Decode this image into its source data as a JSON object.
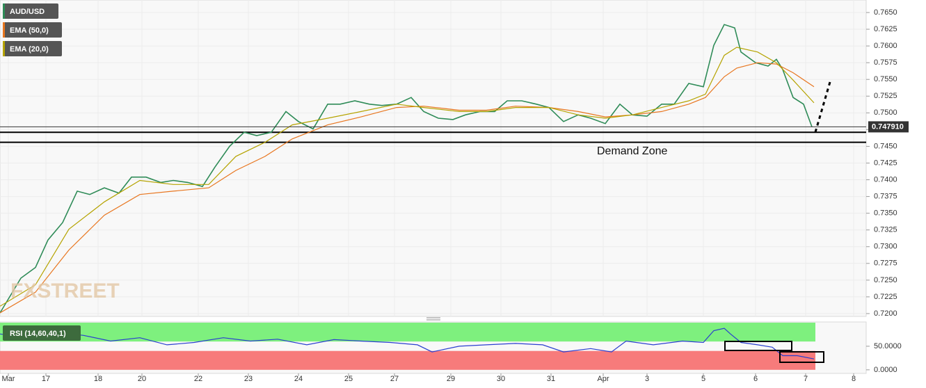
{
  "chart_data": [
    {
      "type": "line",
      "legend": [
        "AUD/USD",
        "EMA (50,0)",
        "EMA (20,0)"
      ],
      "watermark": "FXSTREET",
      "annotation": "Demand Zone",
      "last_price": {
        "value": 0.74791,
        "label": "0.747910"
      },
      "levels": [
        0.7471,
        0.7456
      ],
      "xlim": [
        0,
        415
      ],
      "xticks": [
        {
          "value": 4,
          "label": "Mar"
        },
        {
          "value": 22,
          "label": "17"
        },
        {
          "value": 47,
          "label": "18"
        },
        {
          "value": 68,
          "label": "20"
        },
        {
          "value": 95,
          "label": "22"
        },
        {
          "value": 119,
          "label": "23"
        },
        {
          "value": 143,
          "label": "24"
        },
        {
          "value": 167,
          "label": "25"
        },
        {
          "value": 189,
          "label": "27"
        },
        {
          "value": 216,
          "label": "29"
        },
        {
          "value": 240,
          "label": "30"
        },
        {
          "value": 264,
          "label": "31"
        },
        {
          "value": 289,
          "label": "Apr"
        },
        {
          "value": 310,
          "label": "3"
        },
        {
          "value": 337,
          "label": "5"
        },
        {
          "value": 362,
          "label": "6"
        },
        {
          "value": 386,
          "label": "7"
        },
        {
          "value": 409,
          "label": "8"
        }
      ],
      "ylim": [
        0.71958,
        0.76687
      ],
      "yticks": [
        {
          "value": 0.72,
          "label": "0.7200"
        },
        {
          "value": 0.7225,
          "label": "0.7225"
        },
        {
          "value": 0.725,
          "label": "0.7250"
        },
        {
          "value": 0.7275,
          "label": "0.7275"
        },
        {
          "value": 0.73,
          "label": "0.7300"
        },
        {
          "value": 0.7325,
          "label": "0.7325"
        },
        {
          "value": 0.735,
          "label": "0.7350"
        },
        {
          "value": 0.7375,
          "label": "0.7375"
        },
        {
          "value": 0.74,
          "label": "0.7400"
        },
        {
          "value": 0.7425,
          "label": "0.7425"
        },
        {
          "value": 0.745,
          "label": "0.7450"
        },
        {
          "value": 0.7475,
          "label": "0.7475"
        },
        {
          "value": 0.75,
          "label": "0.7500"
        },
        {
          "value": 0.7525,
          "label": "0.7525"
        },
        {
          "value": 0.755,
          "label": "0.7550"
        },
        {
          "value": 0.7575,
          "label": "0.7575"
        },
        {
          "value": 0.76,
          "label": "0.7600"
        },
        {
          "value": 0.7625,
          "label": "0.7625"
        },
        {
          "value": 0.765,
          "label": "0.7650"
        }
      ],
      "grid": true,
      "series": [
        {
          "name": "AUD/USD",
          "color": "#2e8b57",
          "x": [
            0,
            10,
            17,
            23,
            30,
            37,
            43,
            50,
            57,
            63,
            70,
            77,
            83,
            90,
            97,
            103,
            110,
            117,
            123,
            130,
            137,
            143,
            150,
            157,
            163,
            170,
            177,
            183,
            190,
            197,
            203,
            210,
            217,
            223,
            230,
            237,
            243,
            250,
            257,
            263,
            270,
            277,
            283,
            290,
            297,
            303,
            310,
            317,
            323,
            330,
            337,
            342,
            347,
            352,
            355,
            362,
            368,
            372,
            375,
            380,
            385,
            389
          ],
          "values": [
            0.7201,
            0.7253,
            0.7269,
            0.731,
            0.7336,
            0.7383,
            0.7378,
            0.7388,
            0.738,
            0.7404,
            0.7404,
            0.7396,
            0.7399,
            0.7396,
            0.739,
            0.7419,
            0.745,
            0.7471,
            0.7466,
            0.7471,
            0.7502,
            0.7487,
            0.7476,
            0.7513,
            0.7513,
            0.7518,
            0.7513,
            0.7511,
            0.7513,
            0.7523,
            0.7502,
            0.7492,
            0.749,
            0.7497,
            0.7502,
            0.7502,
            0.7518,
            0.7518,
            0.7513,
            0.7508,
            0.7487,
            0.7497,
            0.7492,
            0.7484,
            0.7513,
            0.7497,
            0.7495,
            0.7513,
            0.7513,
            0.7544,
            0.7539,
            0.7601,
            0.7632,
            0.7627,
            0.7591,
            0.7575,
            0.757,
            0.758,
            0.7565,
            0.7523,
            0.7513,
            0.74791
          ]
        },
        {
          "name": "EMA (50,0)",
          "color": "#e8761f",
          "x": [
            0,
            17,
            33,
            50,
            67,
            83,
            100,
            113,
            127,
            140,
            157,
            173,
            190,
            203,
            220,
            233,
            247,
            263,
            277,
            290,
            303,
            317,
            330,
            338,
            347,
            353,
            363,
            372,
            380,
            390
          ],
          "values": [
            0.7201,
            0.7232,
            0.7295,
            0.7347,
            0.7378,
            0.7383,
            0.7388,
            0.7414,
            0.7435,
            0.7461,
            0.7482,
            0.7494,
            0.7508,
            0.751,
            0.7504,
            0.7504,
            0.751,
            0.7508,
            0.7502,
            0.7494,
            0.7497,
            0.7502,
            0.7513,
            0.7523,
            0.7554,
            0.7567,
            0.7575,
            0.7573,
            0.756,
            0.7539
          ]
        },
        {
          "name": "EMA (20,0)",
          "color": "#b5a300",
          "x": [
            0,
            17,
            33,
            50,
            67,
            83,
            100,
            113,
            127,
            140,
            157,
            173,
            190,
            203,
            220,
            233,
            247,
            263,
            277,
            290,
            303,
            317,
            330,
            338,
            347,
            353,
            363,
            372,
            380,
            390
          ],
          "values": [
            0.7211,
            0.7243,
            0.7326,
            0.7367,
            0.7399,
            0.7393,
            0.7393,
            0.7435,
            0.7456,
            0.7482,
            0.7492,
            0.7502,
            0.7513,
            0.7508,
            0.7502,
            0.7502,
            0.7508,
            0.7508,
            0.7497,
            0.7492,
            0.7497,
            0.7508,
            0.7518,
            0.7528,
            0.7586,
            0.7598,
            0.7591,
            0.7575,
            0.7549,
            0.7515
          ]
        }
      ]
    },
    {
      "type": "line",
      "title": "RSI (14,60,40,1)",
      "xlim": [
        0,
        415
      ],
      "ylim": [
        -7.6,
        101.5
      ],
      "yticks": [
        {
          "value": 50,
          "label": "50.0000"
        },
        {
          "value": 0,
          "label": "0.0000"
        }
      ],
      "bands": [
        {
          "from": 60,
          "to": 100,
          "color": "#7ef07e"
        },
        {
          "from": 0,
          "to": 40,
          "color": "#f77b7b"
        }
      ],
      "series": [
        {
          "name": "RSI",
          "color": "#2a3fd0",
          "x": [
            0,
            13,
            27,
            40,
            53,
            67,
            80,
            93,
            107,
            120,
            133,
            147,
            160,
            173,
            187,
            200,
            207,
            220,
            233,
            247,
            260,
            270,
            283,
            293,
            300,
            313,
            327,
            337,
            342,
            347,
            350,
            355,
            363,
            370,
            375,
            382,
            390
          ],
          "values": [
            76,
            68,
            79,
            73,
            61,
            68,
            53,
            58,
            68,
            61,
            65,
            53,
            64,
            61,
            58,
            53,
            38,
            50,
            53,
            56,
            53,
            38,
            45,
            38,
            61,
            53,
            61,
            58,
            83,
            88,
            76,
            58,
            53,
            48,
            30,
            30,
            23
          ]
        }
      ]
    }
  ]
}
